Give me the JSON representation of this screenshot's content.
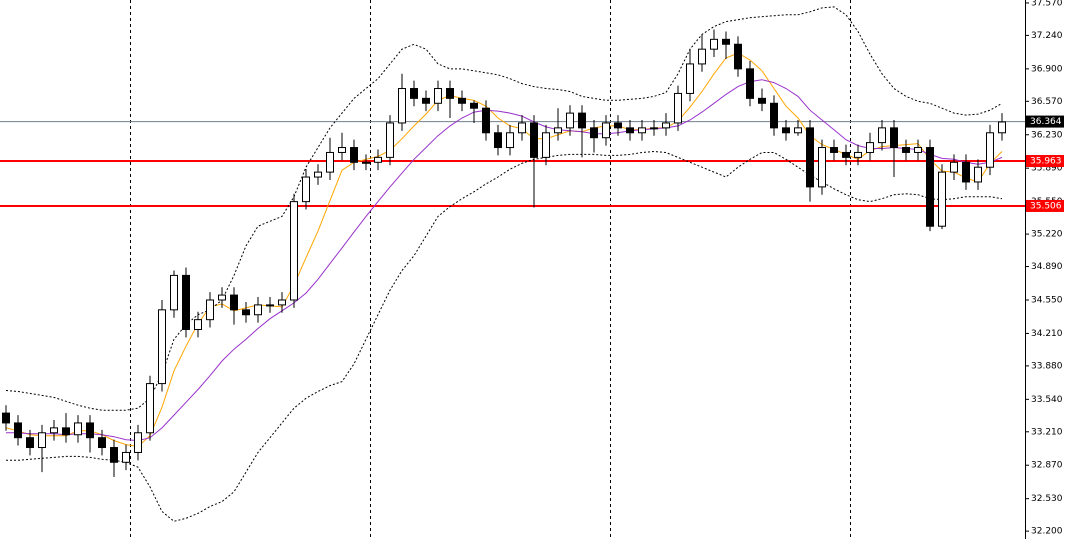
{
  "chart_data": {
    "type": "candlestick",
    "open": [
      33.4,
      33.3,
      33.15,
      33.05,
      33.2,
      33.25,
      33.18,
      33.3,
      33.15,
      33.05,
      32.9,
      33.0,
      33.2,
      33.7,
      34.45,
      34.8,
      34.25,
      34.35,
      34.55,
      34.6,
      34.45,
      34.4,
      34.5,
      34.5,
      34.55,
      35.55,
      35.8,
      35.85,
      36.05,
      36.1,
      35.95,
      35.95,
      36.0,
      36.35,
      36.7,
      36.6,
      36.55,
      36.7,
      36.6,
      36.55,
      36.5,
      36.25,
      36.1,
      36.25,
      36.35,
      36.0,
      36.25,
      36.3,
      36.45,
      36.3,
      36.2,
      36.35,
      36.3,
      36.25,
      36.3,
      36.3,
      36.35,
      36.65,
      36.95,
      37.1,
      37.2,
      37.15,
      36.9,
      36.6,
      36.55,
      36.3,
      36.25,
      36.3,
      35.7,
      36.1,
      36.05,
      36.0,
      36.05,
      36.15,
      36.3,
      36.1,
      36.05,
      36.1,
      35.3,
      35.85,
      35.95,
      35.75,
      35.9,
      36.25
    ],
    "high": [
      33.48,
      33.38,
      33.23,
      33.28,
      33.33,
      33.4,
      33.38,
      33.38,
      33.23,
      33.13,
      33.08,
      33.28,
      33.78,
      34.55,
      34.85,
      34.88,
      34.43,
      34.63,
      34.68,
      34.68,
      34.53,
      34.58,
      34.58,
      34.63,
      35.63,
      35.88,
      35.93,
      36.2,
      36.25,
      36.18,
      36.03,
      36.08,
      36.43,
      36.85,
      36.78,
      36.68,
      36.78,
      36.78,
      36.68,
      36.58,
      36.58,
      36.33,
      36.33,
      36.43,
      36.43,
      36.33,
      36.5,
      36.53,
      36.53,
      36.38,
      36.43,
      36.43,
      36.38,
      36.38,
      36.38,
      36.45,
      36.73,
      37.1,
      37.25,
      37.3,
      37.28,
      37.23,
      36.98,
      36.7,
      36.63,
      36.38,
      36.38,
      36.38,
      36.18,
      36.18,
      36.13,
      36.13,
      36.25,
      36.38,
      36.38,
      36.18,
      36.18,
      36.18,
      35.93,
      36.03,
      36.03,
      35.98,
      36.33,
      36.45
    ],
    "low": [
      33.22,
      33.07,
      32.97,
      32.8,
      33.12,
      33.1,
      33.1,
      33.0,
      32.97,
      32.75,
      32.82,
      32.92,
      33.12,
      33.62,
      34.37,
      34.17,
      34.17,
      34.27,
      34.47,
      34.3,
      34.32,
      34.32,
      34.42,
      34.42,
      34.47,
      35.47,
      35.72,
      35.77,
      35.97,
      35.87,
      35.87,
      35.87,
      35.92,
      36.27,
      36.52,
      36.47,
      36.47,
      36.4,
      36.47,
      36.35,
      36.17,
      36.02,
      36.02,
      36.17,
      35.49,
      35.92,
      36.17,
      36.22,
      36.0,
      36.05,
      36.12,
      36.22,
      36.17,
      36.17,
      36.22,
      36.22,
      36.27,
      36.57,
      36.87,
      37.02,
      37.0,
      36.82,
      36.52,
      36.47,
      36.22,
      36.17,
      36.22,
      35.55,
      35.62,
      35.97,
      35.92,
      35.92,
      35.97,
      36.07,
      35.8,
      35.97,
      35.97,
      35.25,
      35.27,
      35.77,
      35.67,
      35.67,
      35.82,
      36.17
    ],
    "close": [
      33.3,
      33.15,
      33.05,
      33.2,
      33.25,
      33.18,
      33.3,
      33.15,
      33.05,
      32.9,
      33.0,
      33.2,
      33.7,
      34.45,
      34.8,
      34.25,
      34.35,
      34.55,
      34.6,
      34.45,
      34.4,
      34.5,
      34.5,
      34.55,
      35.55,
      35.8,
      35.85,
      36.05,
      36.1,
      35.95,
      35.95,
      36.0,
      36.35,
      36.7,
      36.6,
      36.55,
      36.7,
      36.6,
      36.55,
      36.5,
      36.25,
      36.1,
      36.25,
      36.35,
      36.0,
      36.25,
      36.3,
      36.45,
      36.3,
      36.2,
      36.35,
      36.3,
      36.25,
      36.3,
      36.3,
      36.35,
      36.65,
      36.95,
      37.1,
      37.2,
      37.15,
      36.9,
      36.6,
      36.55,
      36.3,
      36.25,
      36.3,
      35.7,
      36.1,
      36.05,
      36.0,
      36.05,
      36.15,
      36.3,
      36.1,
      36.05,
      36.1,
      35.3,
      35.85,
      35.95,
      35.75,
      35.9,
      36.25,
      36.36
    ],
    "up_color": "#ffffff",
    "down_color": "#000000",
    "outline_color": "#000000",
    "series": [
      {
        "color": "#ffa500",
        "dash": false,
        "values": [
          33.25,
          33.22,
          33.18,
          33.17,
          33.17,
          33.17,
          33.22,
          33.22,
          33.18,
          33.12,
          33.08,
          33.06,
          33.17,
          33.46,
          33.83,
          34.08,
          34.31,
          34.48,
          34.51,
          34.44,
          34.47,
          34.5,
          34.49,
          34.48,
          34.7,
          34.98,
          35.25,
          35.56,
          35.87,
          35.95,
          35.98,
          36.01,
          36.07,
          36.19,
          36.32,
          36.44,
          36.58,
          36.63,
          36.6,
          36.58,
          36.52,
          36.4,
          36.32,
          36.29,
          36.19,
          36.19,
          36.23,
          36.27,
          36.26,
          36.3,
          36.32,
          36.32,
          36.28,
          36.28,
          36.3,
          36.3,
          36.37,
          36.51,
          36.67,
          36.85,
          37.01,
          37.06,
          36.99,
          36.88,
          36.7,
          36.52,
          36.4,
          36.22,
          36.13,
          36.08,
          36.03,
          35.98,
          36.07,
          36.11,
          36.12,
          36.13,
          36.14,
          35.98,
          35.86,
          35.85,
          35.79,
          35.75,
          35.94,
          36.06
        ]
      },
      {
        "color": "#9932cc",
        "dash": false,
        "values": [
          33.2,
          33.2,
          33.19,
          33.19,
          33.19,
          33.18,
          33.19,
          33.19,
          33.18,
          33.16,
          33.13,
          33.12,
          33.15,
          33.25,
          33.38,
          33.51,
          33.64,
          33.78,
          33.93,
          34.05,
          34.15,
          34.26,
          34.36,
          34.44,
          34.52,
          34.62,
          34.76,
          34.92,
          35.08,
          35.24,
          35.4,
          35.55,
          35.7,
          35.84,
          35.98,
          36.1,
          36.22,
          36.32,
          36.4,
          36.46,
          36.48,
          36.47,
          36.45,
          36.42,
          36.36,
          36.31,
          36.28,
          36.27,
          36.26,
          36.24,
          36.24,
          36.25,
          36.27,
          36.28,
          36.29,
          36.3,
          36.32,
          36.38,
          36.46,
          36.55,
          36.64,
          36.72,
          36.77,
          36.79,
          36.76,
          36.7,
          36.62,
          36.48,
          36.38,
          36.28,
          36.18,
          36.12,
          36.09,
          36.09,
          36.1,
          36.09,
          36.08,
          36.03,
          35.99,
          35.98,
          35.95,
          35.93,
          35.95,
          36.0
        ]
      },
      {
        "color": "#000000",
        "dash": true,
        "values": [
          33.63,
          33.62,
          33.6,
          33.58,
          33.56,
          33.52,
          33.48,
          33.45,
          33.43,
          33.43,
          33.43,
          33.45,
          33.55,
          33.8,
          34.15,
          34.3,
          34.4,
          34.45,
          34.55,
          34.8,
          35.1,
          35.3,
          35.35,
          35.4,
          35.6,
          35.9,
          36.1,
          36.3,
          36.45,
          36.6,
          36.7,
          36.8,
          36.95,
          37.1,
          37.15,
          37.1,
          36.95,
          36.9,
          36.9,
          36.88,
          36.86,
          36.84,
          36.8,
          36.75,
          36.72,
          36.7,
          36.69,
          36.67,
          36.62,
          36.6,
          36.58,
          36.58,
          36.59,
          36.6,
          36.62,
          36.66,
          36.85,
          37.1,
          37.25,
          37.33,
          37.38,
          37.4,
          37.42,
          37.43,
          37.44,
          37.45,
          37.45,
          37.48,
          37.52,
          37.53,
          37.45,
          37.28,
          37.05,
          36.85,
          36.7,
          36.62,
          36.57,
          36.55,
          36.5,
          36.45,
          36.43,
          36.44,
          36.48,
          36.55
        ]
      },
      {
        "color": "#000000",
        "dash": true,
        "values": [
          32.92,
          32.92,
          32.93,
          32.94,
          32.95,
          32.96,
          32.96,
          32.95,
          32.93,
          32.92,
          32.9,
          32.85,
          32.65,
          32.4,
          32.3,
          32.33,
          32.38,
          32.45,
          32.5,
          32.6,
          32.8,
          33.0,
          33.15,
          33.3,
          33.45,
          33.55,
          33.62,
          33.68,
          33.72,
          33.9,
          34.15,
          34.4,
          34.65,
          34.85,
          35.0,
          35.2,
          35.4,
          35.5,
          35.58,
          35.65,
          35.73,
          35.8,
          35.88,
          35.94,
          35.98,
          36.0,
          36.02,
          36.03,
          36.03,
          36.03,
          36.02,
          36.02,
          36.03,
          36.05,
          36.06,
          36.05,
          36.0,
          35.95,
          35.9,
          35.85,
          35.8,
          35.9,
          35.98,
          36.05,
          36.05,
          35.98,
          35.9,
          35.82,
          35.75,
          35.68,
          35.62,
          35.57,
          35.55,
          35.58,
          35.62,
          35.63,
          35.62,
          35.58,
          35.57,
          35.58,
          35.6,
          35.6,
          35.6,
          35.58
        ]
      }
    ],
    "hlines": [
      {
        "value": 35.963,
        "label": "35.963",
        "color": "#ff0000"
      },
      {
        "value": 35.506,
        "label": "35.506",
        "color": "#ff0000"
      }
    ],
    "price_line": {
      "value": 36.364,
      "label": "36.364",
      "color": "#708090"
    },
    "ylim": [
      32.12,
      37.6
    ],
    "yticks": [
      {
        "value": 37.57,
        "label": "37.570"
      },
      {
        "value": 37.24,
        "label": "37.240"
      },
      {
        "value": 36.9,
        "label": "36.900"
      },
      {
        "value": 36.57,
        "label": "36.570"
      },
      {
        "value": 36.23,
        "label": "36.230"
      },
      {
        "value": 35.89,
        "label": "35.890"
      },
      {
        "value": 35.55,
        "label": "35.550"
      },
      {
        "value": 35.22,
        "label": "35.220"
      },
      {
        "value": 34.89,
        "label": "34.890"
      },
      {
        "value": 34.55,
        "label": "34.550"
      },
      {
        "value": 34.21,
        "label": "34.210"
      },
      {
        "value": 33.88,
        "label": "33.880"
      },
      {
        "value": 33.54,
        "label": "33.540"
      },
      {
        "value": 33.21,
        "label": "33.210"
      },
      {
        "value": 32.87,
        "label": "32.870"
      },
      {
        "value": 32.53,
        "label": "32.530"
      },
      {
        "value": 32.2,
        "label": "32.200"
      }
    ]
  }
}
